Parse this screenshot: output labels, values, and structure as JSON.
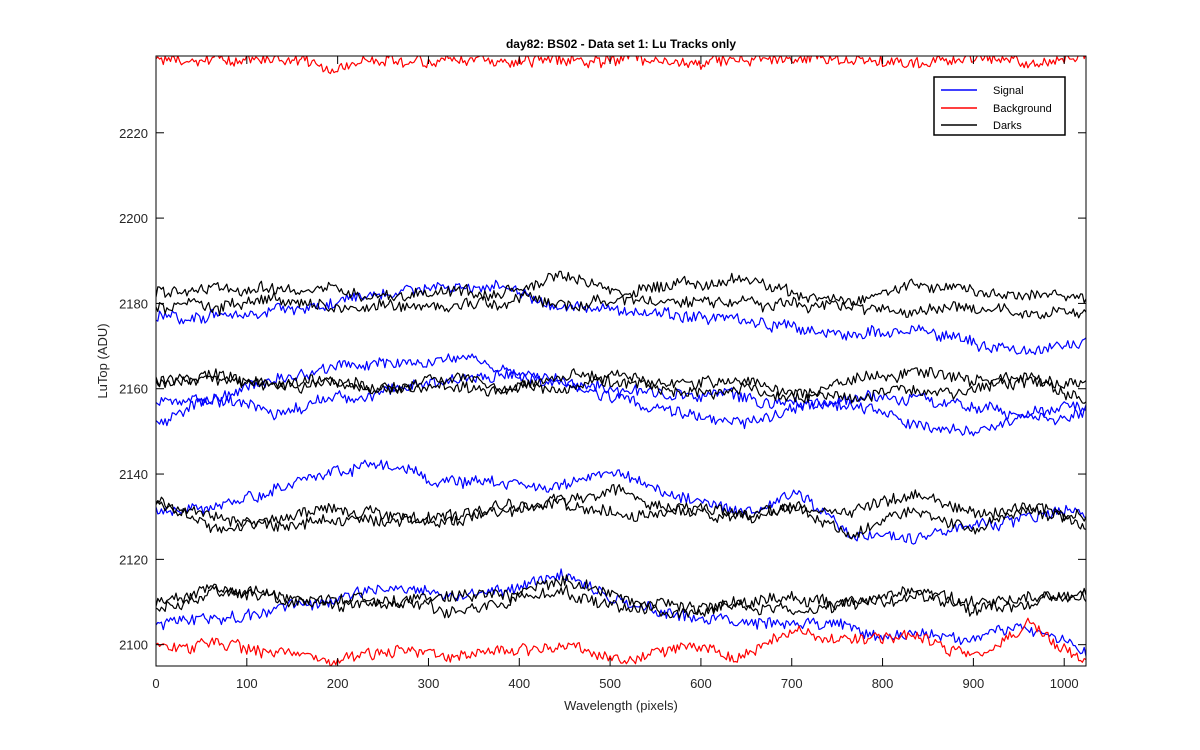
{
  "chart_data": {
    "type": "line",
    "title": "day82: BS02 - Data set 1: Lu Tracks only",
    "xlabel": "Wavelength (pixels)",
    "ylabel": "LuTop (ADU)",
    "xlim": [
      0,
      1024
    ],
    "ylim": [
      2095,
      2238
    ],
    "xticks": [
      0,
      100,
      200,
      300,
      400,
      500,
      600,
      700,
      800,
      900,
      1000
    ],
    "yticks": [
      2100,
      2120,
      2140,
      2160,
      2180,
      2200,
      2220
    ],
    "legend": {
      "location": "top-right",
      "entries": [
        {
          "label": "Signal",
          "color": "#0000ff"
        },
        {
          "label": "Background",
          "color": "#ff0000"
        },
        {
          "label": "Darks",
          "color": "#000000"
        }
      ]
    },
    "x": [
      0,
      64,
      128,
      192,
      256,
      320,
      384,
      448,
      512,
      576,
      640,
      704,
      768,
      832,
      896,
      960,
      1024
    ],
    "series": [
      {
        "name": "Signal 1",
        "group": "Signal",
        "color": "#0000ff",
        "values": [
          2177,
          2177,
          2178,
          2180,
          2182,
          2185,
          2183,
          2180,
          2178,
          2177,
          2176,
          2174,
          2173,
          2174,
          2171,
          2168,
          2171
        ]
      },
      {
        "name": "Signal 2",
        "group": "Signal",
        "color": "#0000ff",
        "values": [
          2157,
          2158,
          2162,
          2165,
          2166,
          2167,
          2164,
          2162,
          2160,
          2159,
          2158,
          2157,
          2156,
          2152,
          2149,
          2154,
          2156
        ]
      },
      {
        "name": "Signal 3",
        "group": "Signal",
        "color": "#0000ff",
        "values": [
          2152,
          2158,
          2154,
          2157,
          2160,
          2162,
          2163,
          2161,
          2158,
          2154,
          2152,
          2155,
          2158,
          2157,
          2156,
          2153,
          2154
        ]
      },
      {
        "name": "Signal 4",
        "group": "Signal",
        "color": "#0000ff",
        "values": [
          2131,
          2132,
          2136,
          2141,
          2142,
          2138,
          2138,
          2138,
          2140,
          2134,
          2131,
          2135,
          2126,
          2125,
          2128,
          2130,
          2131
        ]
      },
      {
        "name": "Signal 5",
        "group": "Signal",
        "color": "#0000ff",
        "values": [
          2105,
          2106,
          2108,
          2110,
          2114,
          2112,
          2112,
          2116,
          2110,
          2106,
          2105,
          2105,
          2104,
          2102,
          2102,
          2104,
          2098
        ]
      },
      {
        "name": "Background 1",
        "group": "Background",
        "color": "#ff0000",
        "values": [
          2237,
          2237,
          2237,
          2235,
          2237,
          2237,
          2237,
          2237,
          2237,
          2237,
          2237,
          2237,
          2237,
          2236,
          2237,
          2237,
          2237
        ]
      },
      {
        "name": "Background 2",
        "group": "Background",
        "color": "#ff0000",
        "values": [
          2099,
          2100,
          2098,
          2096,
          2098,
          2097,
          2098,
          2100,
          2097,
          2099,
          2097,
          2103,
          2101,
          2102,
          2098,
          2105,
          2096
        ]
      },
      {
        "name": "Darks 1",
        "group": "Darks",
        "color": "#000000",
        "values": [
          2182,
          2184,
          2184,
          2183,
          2181,
          2183,
          2182,
          2186,
          2183,
          2184,
          2186,
          2182,
          2180,
          2184,
          2183,
          2182,
          2181
        ]
      },
      {
        "name": "Darks 2",
        "group": "Darks",
        "color": "#000000",
        "values": [
          2179,
          2179,
          2181,
          2179,
          2180,
          2179,
          2181,
          2180,
          2181,
          2180,
          2180,
          2180,
          2179,
          2178,
          2179,
          2178,
          2178
        ]
      },
      {
        "name": "Darks 3",
        "group": "Darks",
        "color": "#000000",
        "values": [
          2162,
          2163,
          2161,
          2161,
          2160,
          2161,
          2160,
          2163,
          2162,
          2161,
          2162,
          2159,
          2162,
          2164,
          2162,
          2163,
          2158
        ]
      },
      {
        "name": "Darks 4",
        "group": "Darks",
        "color": "#000000",
        "values": [
          2162,
          2162,
          2161,
          2162,
          2160,
          2162,
          2161,
          2160,
          2163,
          2159,
          2160,
          2158,
          2158,
          2159,
          2160,
          2162,
          2161
        ]
      },
      {
        "name": "Darks 5",
        "group": "Darks",
        "color": "#000000",
        "values": [
          2134,
          2127,
          2130,
          2132,
          2130,
          2129,
          2133,
          2133,
          2130,
          2132,
          2130,
          2133,
          2126,
          2132,
          2127,
          2132,
          2129
        ]
      },
      {
        "name": "Darks 6",
        "group": "Darks",
        "color": "#000000",
        "values": [
          2133,
          2130,
          2128,
          2130,
          2129,
          2130,
          2131,
          2134,
          2136,
          2132,
          2130,
          2132,
          2131,
          2136,
          2131,
          2133,
          2128
        ]
      },
      {
        "name": "Darks 7",
        "group": "Darks",
        "color": "#000000",
        "values": [
          2108,
          2112,
          2111,
          2110,
          2110,
          2111,
          2111,
          2112,
          2109,
          2107,
          2110,
          2111,
          2109,
          2112,
          2110,
          2111,
          2112
        ]
      },
      {
        "name": "Darks 8",
        "group": "Darks",
        "color": "#000000",
        "values": [
          2110,
          2113,
          2112,
          2111,
          2110,
          2108,
          2110,
          2115,
          2111,
          2108,
          2109,
          2108,
          2110,
          2112,
          2108,
          2110,
          2111
        ]
      }
    ]
  }
}
